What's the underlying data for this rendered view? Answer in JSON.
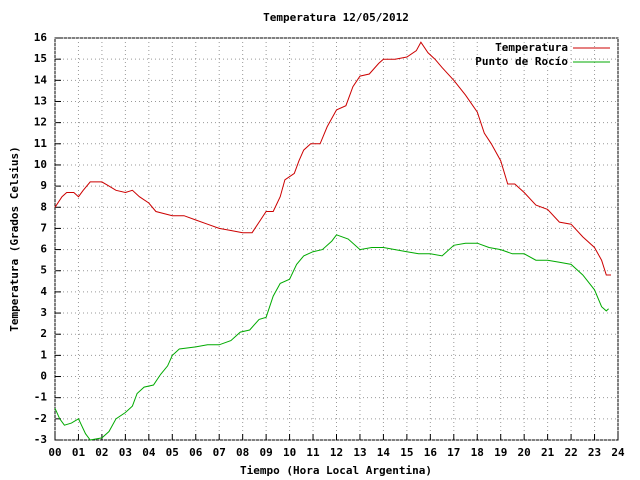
{
  "chart_data": {
    "type": "line",
    "title": "Temperatura 12/05/2012",
    "x_label": "Tiempo (Hora Local Argentina)",
    "y_label": "Temperatura (Grados Celsius)",
    "xlim": [
      0,
      24
    ],
    "ylim": [
      -3,
      16
    ],
    "xticks": [
      {
        "value": 0,
        "label": "00"
      },
      {
        "value": 1,
        "label": "01"
      },
      {
        "value": 2,
        "label": "02"
      },
      {
        "value": 3,
        "label": "03"
      },
      {
        "value": 4,
        "label": "04"
      },
      {
        "value": 5,
        "label": "05"
      },
      {
        "value": 6,
        "label": "06"
      },
      {
        "value": 7,
        "label": "07"
      },
      {
        "value": 8,
        "label": "08"
      },
      {
        "value": 9,
        "label": "09"
      },
      10,
      11,
      12,
      13,
      14,
      15,
      16,
      17,
      18,
      19,
      20,
      21,
      22,
      23,
      24
    ],
    "yticks": [
      -3,
      -2,
      -1,
      0,
      1,
      2,
      3,
      4,
      5,
      6,
      7,
      8,
      9,
      10,
      11,
      12,
      13,
      14,
      15,
      16
    ],
    "grid": true,
    "legend": "top-right",
    "series": [
      {
        "name": "Temperatura",
        "color": "#cc0000",
        "x": [
          0,
          0.3,
          0.5,
          0.8,
          1.0,
          1.2,
          1.5,
          2.0,
          2.3,
          2.6,
          3.0,
          3.3,
          3.6,
          4.0,
          4.3,
          5.0,
          5.5,
          6.0,
          6.5,
          7.0,
          7.5,
          8.0,
          8.4,
          8.7,
          9.0,
          9.3,
          9.6,
          9.8,
          10.2,
          10.4,
          10.6,
          10.9,
          11.3,
          11.6,
          12.0,
          12.4,
          12.7,
          13.0,
          13.4,
          13.8,
          14.0,
          14.5,
          15.0,
          15.4,
          15.6,
          15.9,
          16.2,
          16.5,
          17.0,
          17.5,
          18.0,
          18.3,
          18.6,
          19.0,
          19.3,
          19.6,
          20.0,
          20.5,
          21.0,
          21.5,
          22.0,
          22.5,
          23.0,
          23.3,
          23.5,
          23.7
        ],
        "values": [
          8.0,
          8.5,
          8.7,
          8.7,
          8.5,
          8.8,
          9.2,
          9.2,
          9.0,
          8.8,
          8.7,
          8.8,
          8.5,
          8.2,
          7.8,
          7.6,
          7.6,
          7.4,
          7.2,
          7.0,
          6.9,
          6.8,
          6.8,
          7.3,
          7.8,
          7.8,
          8.5,
          9.3,
          9.6,
          10.2,
          10.7,
          11.0,
          11.0,
          11.8,
          12.6,
          12.8,
          13.7,
          14.2,
          14.3,
          14.8,
          15.0,
          15.0,
          15.1,
          15.4,
          15.8,
          15.3,
          15.0,
          14.6,
          14.0,
          13.3,
          12.5,
          11.5,
          11.0,
          10.2,
          9.1,
          9.1,
          8.7,
          8.1,
          7.9,
          7.3,
          7.2,
          6.6,
          6.1,
          5.5,
          4.8,
          4.8
        ]
      },
      {
        "name": "Punto de Rocío",
        "color": "#00aa00",
        "x": [
          0,
          0.2,
          0.4,
          0.7,
          1.0,
          1.3,
          1.5,
          2.0,
          2.3,
          2.6,
          3.0,
          3.3,
          3.5,
          3.8,
          4.2,
          4.5,
          4.8,
          5.0,
          5.3,
          6.0,
          6.5,
          7.0,
          7.5,
          7.9,
          8.3,
          8.7,
          9.0,
          9.3,
          9.6,
          10.0,
          10.3,
          10.6,
          11.0,
          11.4,
          11.8,
          12.0,
          12.5,
          13.0,
          13.5,
          14.0,
          14.5,
          15.0,
          15.5,
          16.0,
          16.5,
          17.0,
          17.5,
          18.0,
          18.5,
          19.0,
          19.5,
          20.0,
          20.5,
          21.0,
          21.5,
          22.0,
          22.5,
          23.0,
          23.3,
          23.5,
          23.6
        ],
        "values": [
          -1.5,
          -2.0,
          -2.3,
          -2.2,
          -2.0,
          -2.7,
          -3.0,
          -2.9,
          -2.6,
          -2.0,
          -1.7,
          -1.4,
          -0.8,
          -0.5,
          -0.4,
          0.1,
          0.5,
          1.0,
          1.3,
          1.4,
          1.5,
          1.5,
          1.7,
          2.1,
          2.2,
          2.7,
          2.8,
          3.8,
          4.4,
          4.6,
          5.3,
          5.7,
          5.9,
          6.0,
          6.4,
          6.7,
          6.5,
          6.0,
          6.1,
          6.1,
          6.0,
          5.9,
          5.8,
          5.8,
          5.7,
          6.2,
          6.3,
          6.3,
          6.1,
          6.0,
          5.8,
          5.8,
          5.5,
          5.5,
          5.4,
          5.3,
          4.8,
          4.1,
          3.3,
          3.1,
          3.2
        ]
      }
    ]
  }
}
